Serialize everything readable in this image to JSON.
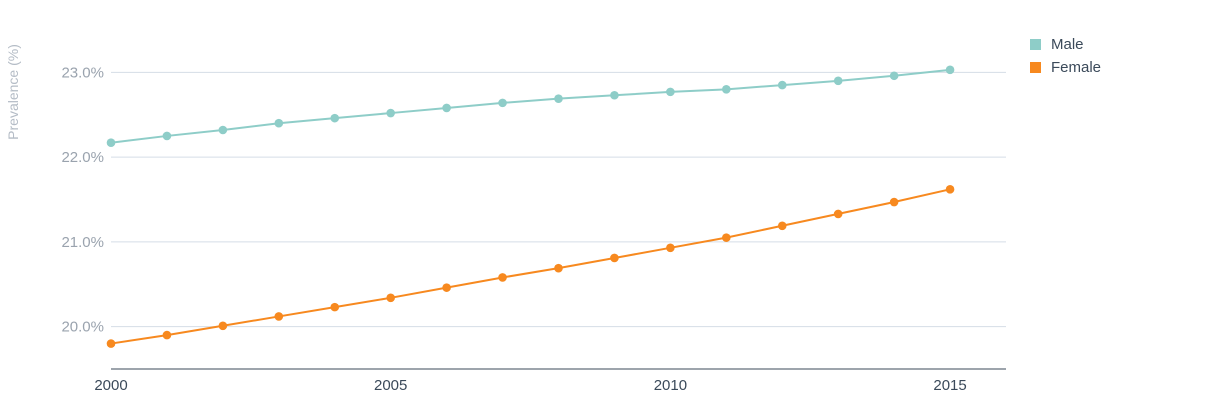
{
  "chart_data": {
    "type": "line",
    "title": "",
    "xlabel": "",
    "ylabel": "Prevalence (%)",
    "x": [
      2000,
      2001,
      2002,
      2003,
      2004,
      2005,
      2006,
      2007,
      2008,
      2009,
      2010,
      2011,
      2012,
      2013,
      2014,
      2015
    ],
    "xlim": [
      2000,
      2016
    ],
    "ylim": [
      19.5,
      23.5
    ],
    "x_ticks": [
      2000,
      2005,
      2010,
      2015
    ],
    "y_ticks": [
      20.0,
      21.0,
      22.0,
      23.0
    ],
    "y_tick_labels": [
      "20.0%",
      "21.0%",
      "22.0%",
      "23.0%"
    ],
    "grid": "horizontal",
    "legend_position": "top-right",
    "series": [
      {
        "name": "Male",
        "color": "#8ecdc8",
        "values": [
          22.17,
          22.25,
          22.32,
          22.4,
          22.46,
          22.52,
          22.58,
          22.64,
          22.69,
          22.73,
          22.77,
          22.8,
          22.85,
          22.9,
          22.96,
          23.03
        ]
      },
      {
        "name": "Female",
        "color": "#f7891f",
        "values": [
          19.8,
          19.9,
          20.01,
          20.12,
          20.23,
          20.34,
          20.46,
          20.58,
          20.69,
          20.81,
          20.93,
          21.05,
          21.19,
          21.33,
          21.47,
          21.62
        ]
      }
    ]
  },
  "colors": {
    "gridline": "#d5dde6",
    "axis": "#3b4a5a"
  }
}
